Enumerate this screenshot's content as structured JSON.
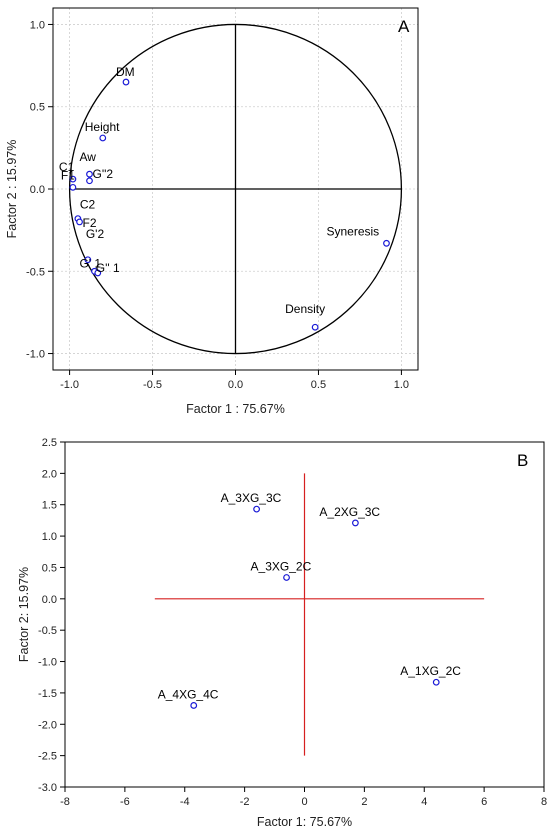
{
  "chart_data": [
    {
      "type": "scatter",
      "panel": "A",
      "xlabel": "Factor 1 : 75.67%",
      "ylabel": "Factor 2 : 15.97%",
      "xlim": [
        -1.1,
        1.1
      ],
      "ylim": [
        -1.1,
        1.1
      ],
      "x_ticks": [
        -1.0,
        -0.5,
        0.0,
        0.5,
        1.0
      ],
      "x_tick_labels": [
        "-1.0",
        "-0.5",
        "0.0",
        "0.5",
        "1.0"
      ],
      "y_ticks": [
        1.0,
        0.5,
        0.0,
        -0.5,
        -1.0
      ],
      "y_tick_labels": [
        "1.0",
        "0.5",
        "0.0",
        "-0.5",
        "-1.0"
      ],
      "grid": true,
      "unit_circle": true,
      "cross_lines": true,
      "marker_color": "#1a1ad6",
      "line_color": "#000000",
      "points": [
        {
          "label": "DM",
          "x": -0.66,
          "y": 0.65
        },
        {
          "label": "Height",
          "x": -0.8,
          "y": 0.31
        },
        {
          "label": "C1",
          "x": -0.98,
          "y": 0.06
        },
        {
          "label": "F1",
          "x": -0.98,
          "y": 0.01
        },
        {
          "label": "Aw",
          "x": -0.88,
          "y": 0.09
        },
        {
          "label": "G''2",
          "x": -0.88,
          "y": 0.05
        },
        {
          "label": "C2",
          "x": -0.95,
          "y": -0.18
        },
        {
          "label": "F2",
          "x": -0.94,
          "y": -0.2
        },
        {
          "label": "G'2",
          "x": -0.89,
          "y": -0.43
        },
        {
          "label": "G' 1",
          "x": -0.85,
          "y": -0.5
        },
        {
          "label": "G'' 1",
          "x": -0.83,
          "y": -0.51
        },
        {
          "label": "Syneresis",
          "x": 0.91,
          "y": -0.33
        },
        {
          "label": "Density",
          "x": 0.48,
          "y": -0.84
        }
      ]
    },
    {
      "type": "scatter",
      "panel": "B",
      "xlabel": "Factor 1: 75.67%",
      "ylabel": "Factor 2: 15.97%",
      "xlim": [
        -8,
        8
      ],
      "ylim": [
        -3.0,
        2.5
      ],
      "x_ticks": [
        -8,
        -6,
        -4,
        -2,
        0,
        2,
        4,
        6,
        8
      ],
      "x_tick_labels": [
        "-8",
        "-6",
        "-4",
        "-2",
        "0",
        "2",
        "4",
        "6",
        "8"
      ],
      "y_ticks": [
        2.5,
        2.0,
        1.5,
        1.0,
        0.5,
        0.0,
        -0.5,
        -1.0,
        -1.5,
        -2.0,
        -2.5,
        -3.0
      ],
      "y_tick_labels": [
        "2.5",
        "2.0",
        "1.5",
        "1.0",
        "0.5",
        "0.0",
        "-0.5",
        "-1.0",
        "-1.5",
        "-2.0",
        "-2.5",
        "-3.0"
      ],
      "grid": false,
      "marker_color": "#1a1ad6",
      "line_color": "#d62020",
      "cross_h": {
        "y": 0,
        "x_from": -5,
        "x_to": 6
      },
      "cross_v": {
        "x": 0,
        "y_from": -2.5,
        "y_to": 2.0
      },
      "points": [
        {
          "label": "A_3XG_3C",
          "x": -1.6,
          "y": 1.43
        },
        {
          "label": "A_2XG_3C",
          "x": 1.7,
          "y": 1.21
        },
        {
          "label": "A_3XG_2C",
          "x": -0.6,
          "y": 0.34
        },
        {
          "label": "A_1XG_2C",
          "x": 4.4,
          "y": -1.33
        },
        {
          "label": "A_4XG_4C",
          "x": -3.7,
          "y": -1.7
        }
      ]
    }
  ]
}
